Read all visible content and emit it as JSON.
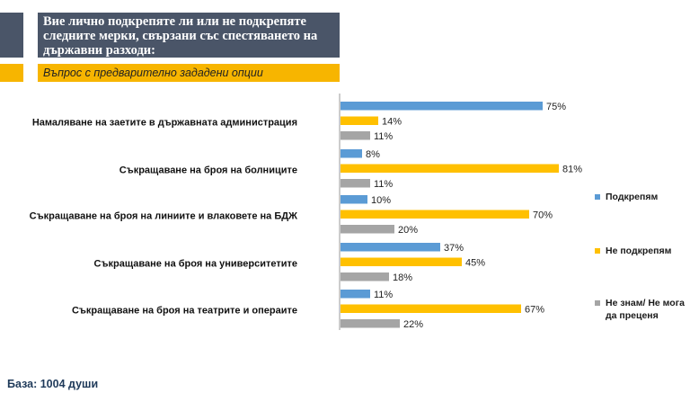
{
  "header": {
    "title": "Вие лично подкрепяте ли или не подкрепяте следните мерки, свързани със спестяването на държавни разходи:",
    "subtitle": "Въпрос с предварително зададени опции"
  },
  "footer": {
    "base": "База: 1004 души"
  },
  "colors": {
    "navy": "#4a5568",
    "accent": "#f7b500",
    "blue": "#5b9bd5",
    "yellow": "#ffc000",
    "gray": "#a5a5a5"
  },
  "chart_data": {
    "type": "bar",
    "orientation": "horizontal",
    "categories": [
      "Намаляване на заетите в държавната администрация",
      "Съкращаване на броя на болниците",
      "Съкращаване на броя на линиите и влаковете на БДЖ",
      "Съкращаване на броя на университетите",
      "Съкращаване на броя на театрите и операите"
    ],
    "series": [
      {
        "name": "Подкрепям",
        "color": "#5b9bd5",
        "values": [
          75,
          8,
          10,
          37,
          11
        ],
        "labels": [
          "75%",
          "8%",
          "10%",
          "37%",
          "11%"
        ]
      },
      {
        "name": "Не подкрепям",
        "color": "#ffc000",
        "values": [
          14,
          81,
          70,
          45,
          67
        ],
        "labels": [
          "14%",
          "81%",
          "70%",
          "45%",
          "67%"
        ]
      },
      {
        "name": "Не знам/ Не мога да преценя",
        "color": "#a5a5a5",
        "values": [
          11,
          11,
          20,
          18,
          22
        ],
        "labels": [
          "11%",
          "11%",
          "20%",
          "18%",
          "22%"
        ]
      }
    ],
    "xlim": [
      0,
      100
    ],
    "legend_position": "right"
  }
}
